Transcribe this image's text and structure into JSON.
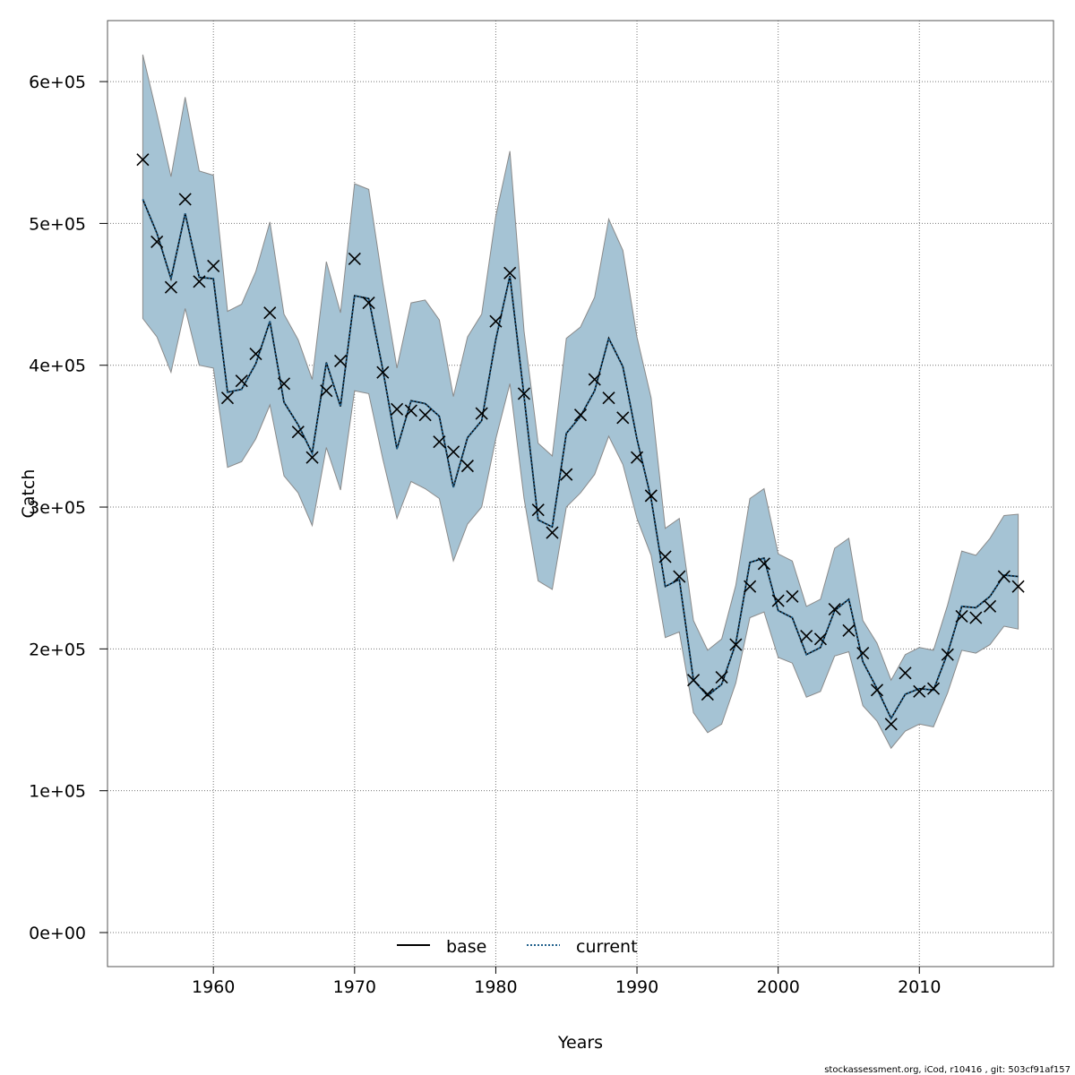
{
  "chart_data": {
    "type": "line",
    "xlabel": "Years",
    "ylabel": "Catch",
    "xlim": [
      1952.5,
      2019.5
    ],
    "ylim": [
      -24000,
      643000
    ],
    "x_ticks": [
      1960,
      1970,
      1980,
      1990,
      2000,
      2010
    ],
    "x_tick_labels": [
      "1960",
      "1970",
      "1980",
      "1990",
      "2000",
      "2010"
    ],
    "y_ticks": [
      0,
      100000,
      200000,
      300000,
      400000,
      500000,
      600000
    ],
    "y_tick_labels": [
      "0e+00",
      "1e+05",
      "2e+05",
      "3e+05",
      "4e+05",
      "5e+05",
      "6e+05"
    ],
    "grid": true,
    "legend": {
      "position": "bottom-center",
      "entries": [
        {
          "label": "base",
          "style": "solid",
          "color": "#000000"
        },
        {
          "label": "current",
          "style": "dotted",
          "color": "#1f5f8b"
        }
      ]
    },
    "band_color": "#a5c3d4",
    "years": [
      1955,
      1956,
      1957,
      1958,
      1959,
      1960,
      1961,
      1962,
      1963,
      1964,
      1965,
      1966,
      1967,
      1968,
      1969,
      1970,
      1971,
      1972,
      1973,
      1974,
      1975,
      1976,
      1977,
      1978,
      1979,
      1980,
      1981,
      1982,
      1983,
      1984,
      1985,
      1986,
      1987,
      1988,
      1989,
      1990,
      1991,
      1992,
      1993,
      1994,
      1995,
      1996,
      1997,
      1998,
      1999,
      2000,
      2001,
      2002,
      2003,
      2004,
      2005,
      2006,
      2007,
      2008,
      2009,
      2010,
      2011,
      2012,
      2013,
      2014,
      2015,
      2016,
      2017
    ],
    "series": [
      {
        "name": "base",
        "estimate": [
          517000,
          493000,
          461000,
          507000,
          462000,
          461000,
          381000,
          383000,
          401000,
          431000,
          374000,
          358000,
          338000,
          402000,
          371000,
          449000,
          447000,
          397000,
          341000,
          375000,
          373000,
          364000,
          314000,
          349000,
          361000,
          418000,
          463000,
          378000,
          291000,
          286000,
          352000,
          364000,
          382000,
          419000,
          399000,
          348000,
          306000,
          244000,
          249000,
          178000,
          167000,
          175000,
          204000,
          261000,
          264000,
          227000,
          222000,
          196000,
          201000,
          227000,
          235000,
          191000,
          172000,
          151000,
          168000,
          172000,
          171000,
          197000,
          230000,
          229000,
          237000,
          252000,
          251000
        ],
        "lower": [
          433000,
          420000,
          395000,
          440000,
          400000,
          398000,
          328000,
          332000,
          348000,
          372000,
          322000,
          310000,
          287000,
          342000,
          312000,
          382000,
          380000,
          334000,
          292000,
          318000,
          313000,
          306000,
          262000,
          288000,
          300000,
          348000,
          387000,
          306000,
          248000,
          242000,
          300000,
          310000,
          323000,
          350000,
          330000,
          292000,
          266000,
          208000,
          212000,
          155000,
          141000,
          147000,
          176000,
          222000,
          226000,
          194000,
          190000,
          166000,
          170000,
          195000,
          198000,
          160000,
          149000,
          130000,
          142000,
          147000,
          145000,
          169000,
          199000,
          197000,
          203000,
          216000,
          214000
        ],
        "upper": [
          619000,
          577000,
          533000,
          589000,
          537000,
          534000,
          438000,
          443000,
          466000,
          501000,
          436000,
          418000,
          390000,
          473000,
          437000,
          528000,
          524000,
          458000,
          398000,
          444000,
          446000,
          432000,
          378000,
          420000,
          436000,
          505000,
          551000,
          424000,
          345000,
          336000,
          419000,
          427000,
          448000,
          503000,
          481000,
          420000,
          377000,
          285000,
          292000,
          220000,
          199000,
          207000,
          245000,
          306000,
          313000,
          267000,
          262000,
          230000,
          235000,
          271000,
          278000,
          220000,
          204000,
          178000,
          196000,
          201000,
          199000,
          231000,
          269000,
          266000,
          278000,
          294000,
          295000
        ]
      },
      {
        "name": "current",
        "estimate": [
          517000,
          493000,
          461000,
          507000,
          462000,
          461000,
          381000,
          383000,
          401000,
          431000,
          374000,
          358000,
          338000,
          402000,
          371000,
          449000,
          447000,
          397000,
          341000,
          375000,
          373000,
          364000,
          314000,
          349000,
          361000,
          418000,
          463000,
          378000,
          291000,
          286000,
          352000,
          364000,
          382000,
          419000,
          399000,
          348000,
          306000,
          244000,
          249000,
          178000,
          167000,
          175000,
          204000,
          261000,
          264000,
          227000,
          222000,
          196000,
          201000,
          227000,
          235000,
          191000,
          172000,
          151000,
          168000,
          172000,
          171000,
          197000,
          230000,
          229000,
          237000,
          252000,
          251000
        ]
      }
    ],
    "observed": [
      545000,
      487000,
      455000,
      517000,
      459000,
      470000,
      377000,
      389000,
      408000,
      437000,
      387000,
      353000,
      335000,
      382000,
      403000,
      475000,
      444000,
      395000,
      369000,
      368000,
      365000,
      346000,
      339000,
      329000,
      366000,
      431000,
      465000,
      380000,
      298000,
      282000,
      323000,
      365000,
      390000,
      377000,
      363000,
      335000,
      308000,
      265000,
      251000,
      178000,
      168000,
      180000,
      203000,
      244000,
      260000,
      234000,
      237000,
      209000,
      207000,
      228000,
      213000,
      197000,
      171000,
      147000,
      183000,
      170000,
      172000,
      196000,
      223000,
      222000,
      230000,
      251000,
      244000
    ]
  },
  "footer": "stockassessment.org, iCod, r10416 , git: 503cf91af157"
}
